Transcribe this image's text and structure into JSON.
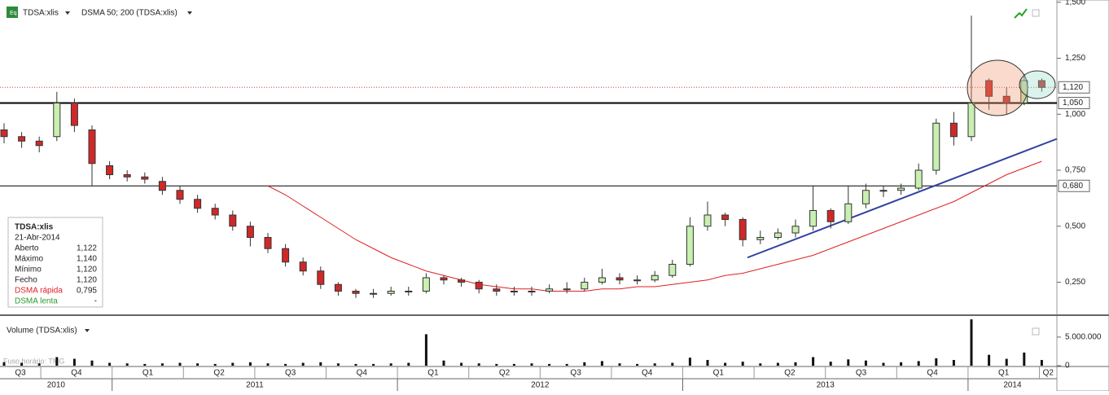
{
  "toolbar": {
    "symbol": "TDSA:xlis",
    "indicator": "DSMA 50; 200 (TDSA:xlis)"
  },
  "chart_data": {
    "type": "candlestick",
    "open": [
      0.93,
      0.9,
      0.88,
      0.9,
      1.05,
      0.93,
      0.77,
      0.73,
      0.72,
      0.7,
      0.66,
      0.62,
      0.58,
      0.55,
      0.5,
      0.45,
      0.4,
      0.34,
      0.3,
      0.24,
      0.21,
      0.2,
      0.2,
      0.21,
      0.21,
      0.27,
      0.26,
      0.25,
      0.22,
      0.21,
      0.21,
      0.21,
      0.22,
      0.22,
      0.25,
      0.27,
      0.26,
      0.26,
      0.28,
      0.33,
      0.5,
      0.55,
      0.53,
      0.44,
      0.45,
      0.47,
      0.5,
      0.57,
      0.52,
      0.6,
      0.66,
      0.66,
      0.67,
      0.75,
      0.96,
      0.9,
      1.15,
      1.08,
      1.05,
      1.15
    ],
    "high": [
      0.96,
      0.92,
      0.9,
      1.1,
      1.07,
      0.95,
      0.79,
      0.75,
      0.74,
      0.72,
      0.68,
      0.64,
      0.6,
      0.57,
      0.52,
      0.47,
      0.42,
      0.36,
      0.32,
      0.25,
      0.22,
      0.22,
      0.23,
      0.23,
      0.29,
      0.28,
      0.27,
      0.26,
      0.24,
      0.23,
      0.23,
      0.24,
      0.25,
      0.27,
      0.31,
      0.29,
      0.28,
      0.3,
      0.35,
      0.54,
      0.61,
      0.56,
      0.54,
      0.48,
      0.49,
      0.53,
      0.68,
      0.58,
      0.68,
      0.69,
      0.68,
      0.69,
      0.78,
      0.98,
      1.01,
      1.44,
      1.16,
      1.12,
      1.18,
      1.16
    ],
    "low": [
      0.87,
      0.85,
      0.83,
      0.88,
      0.92,
      0.68,
      0.71,
      0.7,
      0.69,
      0.64,
      0.6,
      0.56,
      0.53,
      0.48,
      0.41,
      0.38,
      0.32,
      0.28,
      0.22,
      0.19,
      0.18,
      0.18,
      0.19,
      0.19,
      0.2,
      0.24,
      0.23,
      0.2,
      0.19,
      0.19,
      0.19,
      0.2,
      0.2,
      0.21,
      0.24,
      0.24,
      0.24,
      0.25,
      0.27,
      0.32,
      0.48,
      0.5,
      0.41,
      0.42,
      0.44,
      0.45,
      0.48,
      0.49,
      0.51,
      0.58,
      0.63,
      0.64,
      0.66,
      0.73,
      0.86,
      0.88,
      1.02,
      1.0,
      1.04,
      1.1
    ],
    "close": [
      0.9,
      0.88,
      0.86,
      1.05,
      0.95,
      0.78,
      0.73,
      0.72,
      0.71,
      0.66,
      0.62,
      0.58,
      0.55,
      0.5,
      0.45,
      0.4,
      0.34,
      0.3,
      0.24,
      0.21,
      0.2,
      0.2,
      0.21,
      0.21,
      0.27,
      0.26,
      0.25,
      0.22,
      0.21,
      0.21,
      0.21,
      0.22,
      0.22,
      0.25,
      0.27,
      0.26,
      0.26,
      0.28,
      0.33,
      0.5,
      0.55,
      0.53,
      0.44,
      0.45,
      0.47,
      0.5,
      0.57,
      0.52,
      0.6,
      0.66,
      0.66,
      0.67,
      0.75,
      0.96,
      0.9,
      1.05,
      1.08,
      1.05,
      1.15,
      1.12
    ],
    "slow_ma": {
      "color": "#e02020",
      "values": [
        null,
        null,
        null,
        null,
        null,
        null,
        null,
        null,
        null,
        null,
        null,
        null,
        null,
        null,
        null,
        0.68,
        0.64,
        0.59,
        0.54,
        0.49,
        0.44,
        0.4,
        0.36,
        0.33,
        0.3,
        0.28,
        0.26,
        0.24,
        0.23,
        0.22,
        0.22,
        0.21,
        0.21,
        0.21,
        0.22,
        0.22,
        0.23,
        0.23,
        0.24,
        0.25,
        0.26,
        0.28,
        0.29,
        0.31,
        0.33,
        0.35,
        0.37,
        0.4,
        0.43,
        0.46,
        0.49,
        0.52,
        0.55,
        0.58,
        0.61,
        0.65,
        0.69,
        0.73,
        0.76,
        0.79
      ]
    },
    "trendline": {
      "color": "#3040a0",
      "from": 0.36,
      "to": 0.89
    },
    "ylim": [
      0.11,
      1.51
    ],
    "yticks": [
      {
        "value": 0.25,
        "label": "0,250"
      },
      {
        "value": 0.5,
        "label": "0,500"
      },
      {
        "value": 0.75,
        "label": "0,750"
      },
      {
        "value": 1.0,
        "label": "1,000"
      },
      {
        "value": 1.25,
        "label": "1,250"
      },
      {
        "value": 1.5,
        "label": "1,500"
      }
    ],
    "hlines": [
      {
        "value": 1.05,
        "label": "1,050"
      },
      {
        "value": 0.68,
        "label": "0,680"
      }
    ],
    "last": {
      "value": 1.12,
      "label": "1,120"
    },
    "volume_title": "Volume (TDSA:xlis)",
    "volume": [
      600000,
      500000,
      400000,
      1500000,
      1200000,
      900000,
      500000,
      400000,
      300000,
      400000,
      500000,
      400000,
      300000,
      500000,
      600000,
      400000,
      300000,
      500000,
      600000,
      400000,
      300000,
      300000,
      400000,
      500000,
      5500000,
      900000,
      500000,
      400000,
      300000,
      300000,
      400000,
      300000,
      300000,
      600000,
      800000,
      400000,
      300000,
      400000,
      500000,
      1400000,
      1000000,
      500000,
      700000,
      400000,
      500000,
      600000,
      1500000,
      700000,
      1100000,
      900000,
      500000,
      600000,
      800000,
      1300000,
      1000000,
      8100000,
      1900000,
      1200000,
      2300000,
      1000000
    ],
    "vlim": [
      0,
      8400000
    ],
    "vticks": [
      0,
      {
        "value": 5000000,
        "label": "5.000.000"
      }
    ],
    "quarters": [
      "Q3",
      "Q4",
      "Q1",
      "Q2",
      "Q3",
      "Q4",
      "Q1",
      "Q2",
      "Q3",
      "Q4",
      "Q1",
      "Q2",
      "Q3",
      "Q4",
      "Q1",
      "Q2"
    ],
    "years": [
      "2010",
      "2011",
      "2012",
      "2013",
      "2014"
    ],
    "timezone": "Fuso horário: TMG"
  },
  "info": {
    "symbol": "TDSA:xlis",
    "date": "21-Abr-2014",
    "rows": [
      {
        "label": "Aberto",
        "value": "1,122"
      },
      {
        "label": "Máximo",
        "value": "1,140"
      },
      {
        "label": "Mínimo",
        "value": "1,120"
      },
      {
        "label": "Fecho",
        "value": "1,120"
      },
      {
        "label": "DSMA rápida",
        "value": "0,795"
      },
      {
        "label": "DSMA lenta",
        "value": "-"
      }
    ]
  }
}
